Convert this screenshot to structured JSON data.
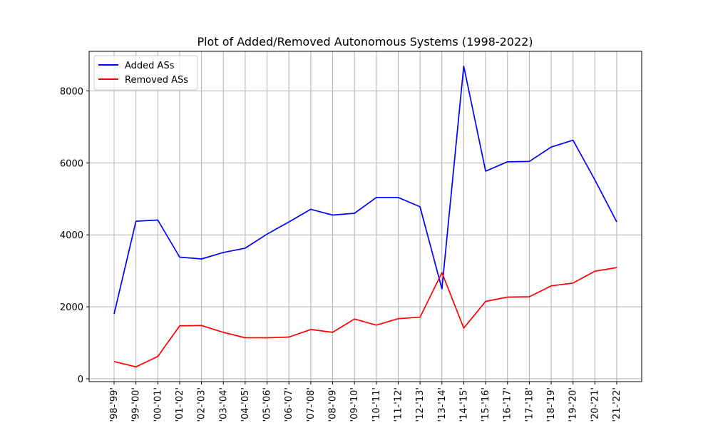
{
  "chart_data": {
    "type": "line",
    "title": "Plot of Added/Removed Autonomous Systems (1998-2022)",
    "xlabel": "",
    "ylabel": "",
    "categories": [
      "'98-'99'",
      "'99-'00'",
      "'00-'01'",
      "'01-'02'",
      "'02-'03'",
      "'03-'04'",
      "'04-'05'",
      "'05-'06'",
      "'06-'07'",
      "'07-'08'",
      "'08-'09'",
      "'09-'10'",
      "'10-'11'",
      "'11-'12'",
      "'12-'13'",
      "'13-'14'",
      "'14-'15'",
      "'15-'16'",
      "'16-'17'",
      "'17-'18'",
      "'18-'19'",
      "'19-'20'",
      "'20-'21'",
      "'21-'22'"
    ],
    "series": [
      {
        "name": "Added ASs",
        "color": "#0000ff",
        "values": [
          1800,
          4380,
          4410,
          3380,
          3330,
          3510,
          3630,
          4020,
          4360,
          4710,
          4550,
          4600,
          5040,
          5040,
          4780,
          2500,
          8690,
          5770,
          6030,
          6040,
          6440,
          6630,
          5530,
          4360
        ]
      },
      {
        "name": "Removed ASs",
        "color": "#ff0000",
        "values": [
          480,
          330,
          620,
          1470,
          1480,
          1290,
          1140,
          1140,
          1160,
          1370,
          1290,
          1660,
          1490,
          1670,
          1710,
          2950,
          1410,
          2150,
          2270,
          2280,
          2580,
          2660,
          2990,
          3090
        ]
      }
    ],
    "ylim": [
      -80,
      9100
    ],
    "yticks": [
      0,
      2000,
      4000,
      6000,
      8000
    ],
    "grid": true,
    "legend_position": "top-left"
  }
}
